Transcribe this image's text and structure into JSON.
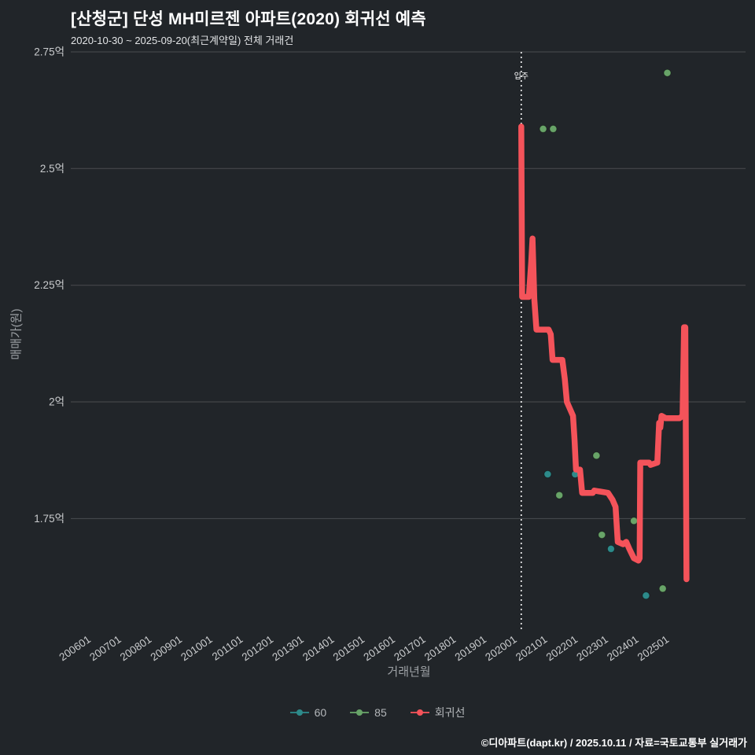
{
  "header": {
    "title": "[산청군] 단성 MH미르젠 아파트(2020) 회귀선 예측",
    "subtitle": "2020-10-30 ~ 2025-09-20(최근계약일) 전체 거래건"
  },
  "footer": {
    "credit": "©디아파트(dapt.kr) / 2025.10.11 / 자료=국토교통부 실거래가"
  },
  "chart_data": {
    "type": "line",
    "title": "[산청군] 단성 MH미르젠 아파트(2020) 회귀선 예측",
    "xlabel": "거래년월",
    "ylabel": "매매가(원)",
    "xlim": [
      2005.45,
      2027.62
    ],
    "ylim": [
      1.513,
      2.75
    ],
    "grid": "horizontal-only",
    "legend_position": "bottom-center",
    "colors": {
      "background": "#212529",
      "grid": "#4a4d50",
      "tick": "#c9cbcd",
      "axis_title": "#9ea2a6",
      "annotation": "#ffffff",
      "series_60": "#2d8a8a",
      "series_85": "#68a468",
      "series_regression": "#f4535a"
    },
    "y_ticks": [
      {
        "v": 2.75,
        "label": "2.75억"
      },
      {
        "v": 2.5,
        "label": "2.5억"
      },
      {
        "v": 2.25,
        "label": "2.25억"
      },
      {
        "v": 2.0,
        "label": "2억"
      },
      {
        "v": 1.75,
        "label": "1.75억"
      }
    ],
    "x_ticks": [
      {
        "v": 2006,
        "label": "200601"
      },
      {
        "v": 2007,
        "label": "200701"
      },
      {
        "v": 2008,
        "label": "200801"
      },
      {
        "v": 2009,
        "label": "200901"
      },
      {
        "v": 2010,
        "label": "201001"
      },
      {
        "v": 2011,
        "label": "201101"
      },
      {
        "v": 2012,
        "label": "201201"
      },
      {
        "v": 2013,
        "label": "201301"
      },
      {
        "v": 2014,
        "label": "201401"
      },
      {
        "v": 2015,
        "label": "201501"
      },
      {
        "v": 2016,
        "label": "201601"
      },
      {
        "v": 2017,
        "label": "201701"
      },
      {
        "v": 2018,
        "label": "201801"
      },
      {
        "v": 2019,
        "label": "201901"
      },
      {
        "v": 2020,
        "label": "202001"
      },
      {
        "v": 2021,
        "label": "202101"
      },
      {
        "v": 2022,
        "label": "202201"
      },
      {
        "v": 2023,
        "label": "202301"
      },
      {
        "v": 2024,
        "label": "202401"
      },
      {
        "v": 2025,
        "label": "202501"
      }
    ],
    "annotation": {
      "x": 2020.25,
      "label": "입주"
    },
    "series": [
      {
        "name": "60",
        "type": "scatter",
        "color": "#2d8a8a",
        "points": [
          [
            2021.12,
            1.845
          ],
          [
            2022.02,
            1.845
          ],
          [
            2023.2,
            1.685
          ],
          [
            2024.35,
            1.585
          ]
        ]
      },
      {
        "name": "85",
        "type": "scatter",
        "color": "#68a468",
        "points": [
          [
            2020.97,
            2.585
          ],
          [
            2021.3,
            2.585
          ],
          [
            2025.05,
            2.705
          ],
          [
            2021.5,
            1.8
          ],
          [
            2022.72,
            1.885
          ],
          [
            2022.9,
            1.715
          ],
          [
            2023.95,
            1.745
          ],
          [
            2024.9,
            1.6
          ]
        ]
      },
      {
        "name": "회귀선",
        "type": "line",
        "color": "#f4535a",
        "points": [
          [
            2020.25,
            2.59
          ],
          [
            2020.28,
            2.225
          ],
          [
            2020.5,
            2.225
          ],
          [
            2020.58,
            2.3
          ],
          [
            2020.62,
            2.35
          ],
          [
            2020.68,
            2.22
          ],
          [
            2020.75,
            2.155
          ],
          [
            2021.15,
            2.155
          ],
          [
            2021.22,
            2.145
          ],
          [
            2021.28,
            2.09
          ],
          [
            2021.6,
            2.09
          ],
          [
            2021.68,
            2.05
          ],
          [
            2021.75,
            2.0
          ],
          [
            2021.85,
            1.985
          ],
          [
            2021.95,
            1.97
          ],
          [
            2022.0,
            1.92
          ],
          [
            2022.05,
            1.855
          ],
          [
            2022.18,
            1.855
          ],
          [
            2022.25,
            1.805
          ],
          [
            2022.6,
            1.805
          ],
          [
            2022.65,
            1.81
          ],
          [
            2023.1,
            1.805
          ],
          [
            2023.25,
            1.79
          ],
          [
            2023.35,
            1.775
          ],
          [
            2023.42,
            1.7
          ],
          [
            2023.6,
            1.695
          ],
          [
            2023.7,
            1.7
          ],
          [
            2023.8,
            1.685
          ],
          [
            2023.95,
            1.665
          ],
          [
            2024.1,
            1.66
          ],
          [
            2024.14,
            1.665
          ],
          [
            2024.16,
            1.87
          ],
          [
            2024.45,
            1.87
          ],
          [
            2024.5,
            1.865
          ],
          [
            2024.72,
            1.87
          ],
          [
            2024.78,
            1.955
          ],
          [
            2024.82,
            1.945
          ],
          [
            2024.86,
            1.97
          ],
          [
            2025.0,
            1.965
          ],
          [
            2025.45,
            1.965
          ],
          [
            2025.55,
            1.97
          ],
          [
            2025.6,
            2.16
          ],
          [
            2025.64,
            2.16
          ],
          [
            2025.68,
            1.62
          ]
        ]
      }
    ]
  }
}
